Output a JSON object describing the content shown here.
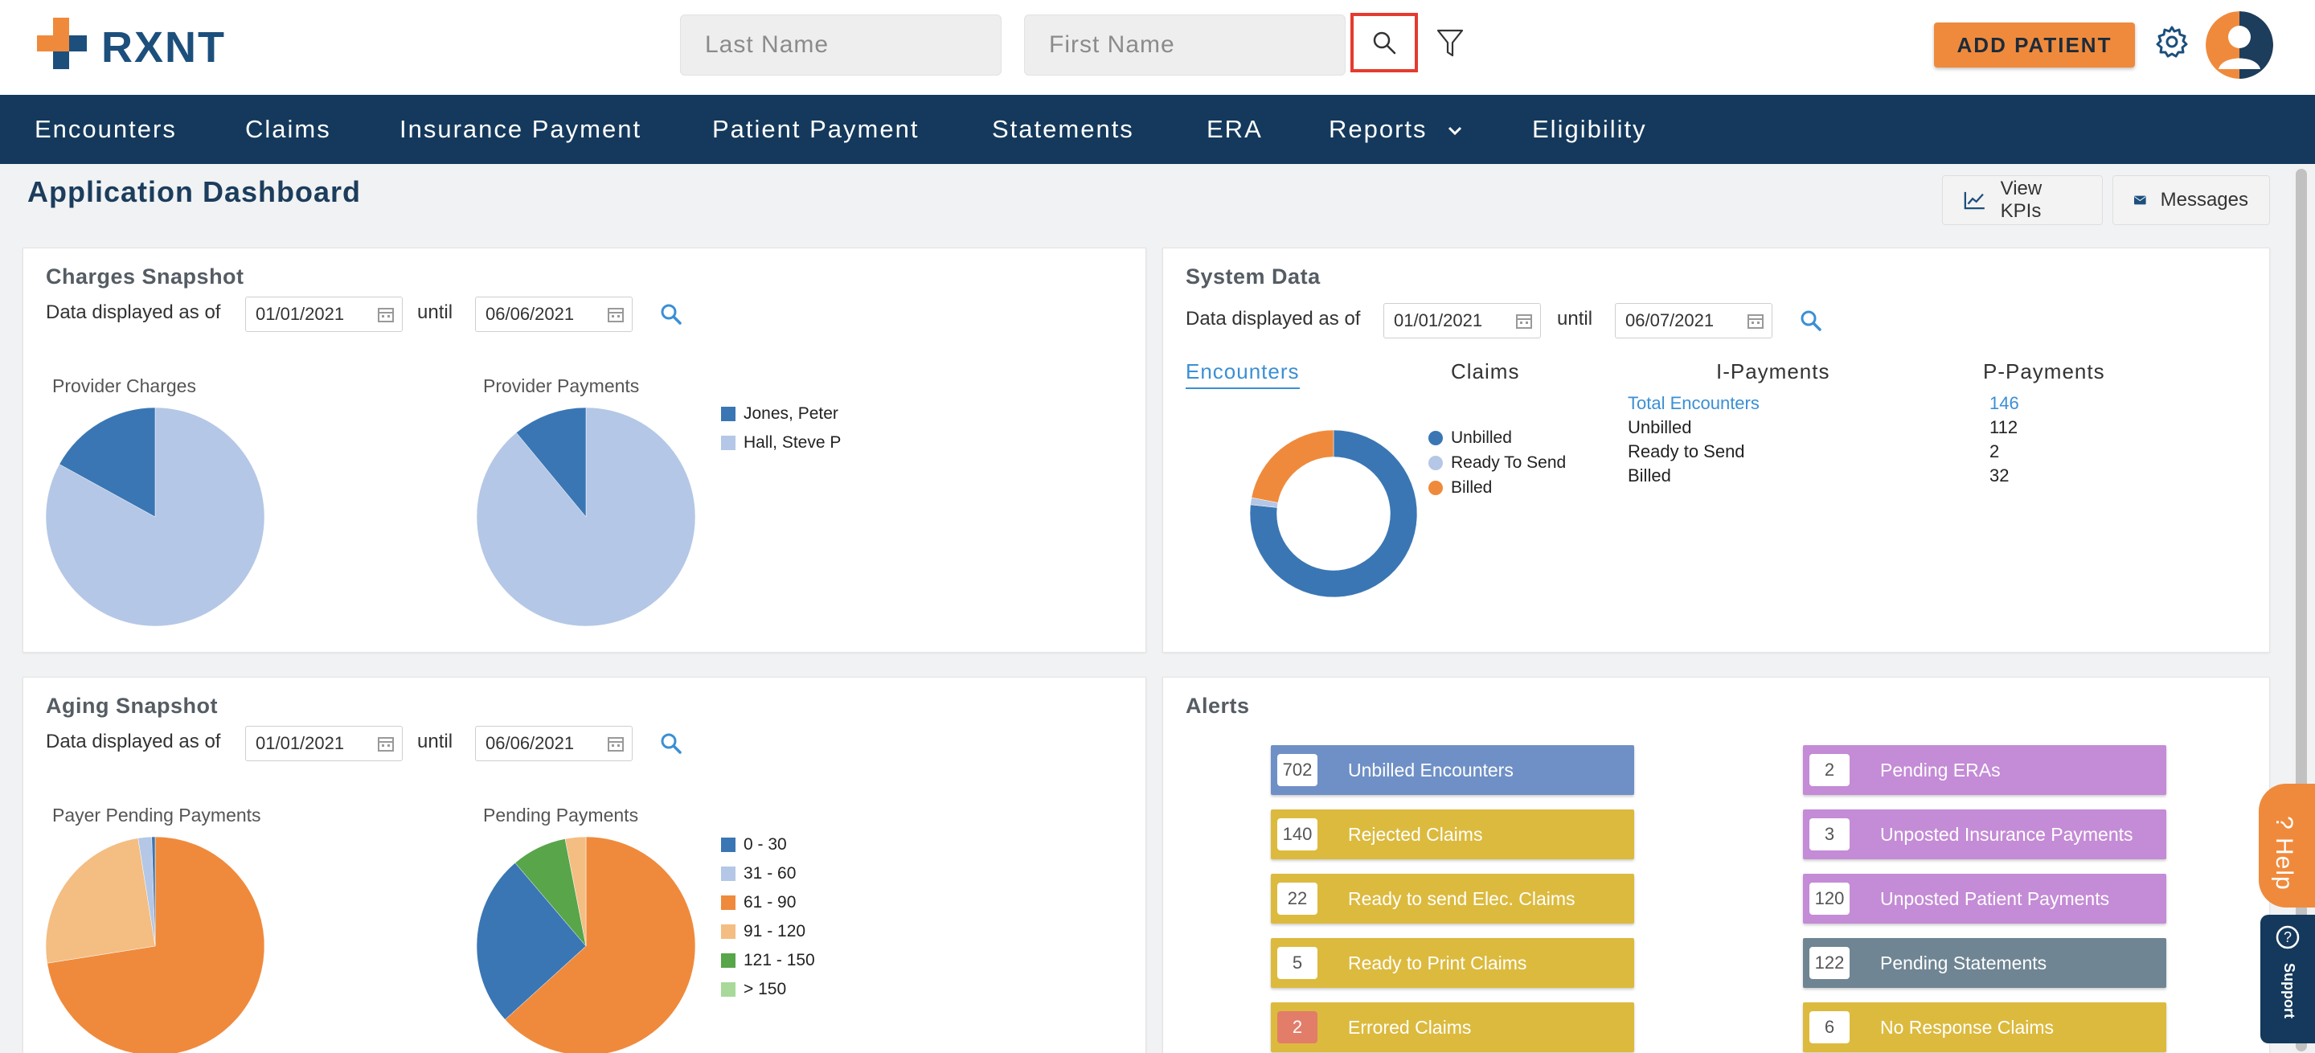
{
  "header": {
    "logo_text": "RXNT",
    "last_name_placeholder": "Last Name",
    "first_name_placeholder": "First Name",
    "add_patient_label": "ADD PATIENT",
    "search_icon": "search-icon",
    "filter_icon": "filter-icon",
    "settings_icon": "gear-icon"
  },
  "nav": {
    "items": [
      "Encounters",
      "Claims",
      "Insurance Payment",
      "Patient Payment",
      "Statements",
      "ERA",
      "Reports",
      "Eligibility"
    ]
  },
  "page": {
    "title": "Application Dashboard",
    "view_kpis_label": "View KPIs",
    "messages_label": "Messages"
  },
  "charges": {
    "title": "Charges Snapshot",
    "data_label": "Data displayed as of",
    "from_date": "01/01/2021",
    "until_label": "until",
    "to_date": "06/06/2021",
    "chart1_label": "Provider Charges",
    "chart2_label": "Provider Payments",
    "legend": [
      "Jones, Peter",
      "Hall, Steve P"
    ]
  },
  "system": {
    "title": "System Data",
    "data_label": "Data displayed as of",
    "from_date": "01/01/2021",
    "until_label": "until",
    "to_date": "06/07/2021",
    "tabs": [
      "Encounters",
      "Claims",
      "I-Payments",
      "P-Payments"
    ],
    "legend": [
      "Unbilled",
      "Ready To Send",
      "Billed"
    ],
    "stats": [
      {
        "label": "Total Encounters",
        "value": "146"
      },
      {
        "label": "Unbilled",
        "value": "112"
      },
      {
        "label": "Ready to Send",
        "value": "2"
      },
      {
        "label": "Billed",
        "value": "32"
      }
    ]
  },
  "aging": {
    "title": "Aging Snapshot",
    "data_label": "Data displayed as of",
    "from_date": "01/01/2021",
    "until_label": "until",
    "to_date": "06/06/2021",
    "chart1_label": "Payer Pending Payments",
    "chart2_label": "Pending Payments",
    "legend": [
      "0 - 30",
      "31 - 60",
      "61 - 90",
      "91 - 120",
      "121 - 150",
      "> 150"
    ]
  },
  "alerts": {
    "title": "Alerts",
    "left": [
      {
        "count": "702",
        "label": "Unbilled Encounters",
        "color": "#6f90c6"
      },
      {
        "count": "140",
        "label": "Rejected Claims",
        "color": "#dcba3e"
      },
      {
        "count": "22",
        "label": "Ready to send Elec. Claims",
        "color": "#dcba3e"
      },
      {
        "count": "5",
        "label": "Ready to Print Claims",
        "color": "#dcba3e"
      },
      {
        "count": "2",
        "label": "Errored Claims",
        "color": "#dcba3e"
      }
    ],
    "right": [
      {
        "count": "2",
        "label": "Pending ERAs",
        "color": "#c48bd6"
      },
      {
        "count": "3",
        "label": "Unposted Insurance Payments",
        "color": "#c48bd6"
      },
      {
        "count": "120",
        "label": "Unposted Patient Payments",
        "color": "#c48bd6"
      },
      {
        "count": "122",
        "label": "Pending Statements",
        "color": "#6f8593"
      },
      {
        "count": "6",
        "label": "No Response Claims",
        "color": "#dcba3e"
      }
    ]
  },
  "widgets": {
    "help_label": "? Help",
    "support_label": "Support"
  },
  "chart_data": [
    {
      "type": "pie",
      "title": "Provider Charges",
      "categories": [
        "Jones, Peter",
        "Hall, Steve P"
      ],
      "values": [
        17,
        83
      ],
      "colors": [
        "#3a76b4",
        "#b4c7e6"
      ]
    },
    {
      "type": "pie",
      "title": "Provider Payments",
      "categories": [
        "Jones, Peter",
        "Hall, Steve P"
      ],
      "values": [
        11,
        89
      ],
      "colors": [
        "#3a76b4",
        "#b4c7e6"
      ]
    },
    {
      "type": "pie",
      "title": "Encounters",
      "categories": [
        "Unbilled",
        "Ready To Send",
        "Billed"
      ],
      "values": [
        112,
        2,
        32
      ],
      "colors": [
        "#3a76b4",
        "#b4c7e6",
        "#ef8a3c"
      ],
      "donut": true
    },
    {
      "type": "pie",
      "title": "Payer Pending Payments",
      "categories": [
        "0 - 30",
        "31 - 60",
        "61 - 90",
        "91 - 120",
        "121 - 150",
        "> 150"
      ],
      "values": [
        0.5,
        2,
        72.5,
        25,
        0,
        0
      ],
      "colors": [
        "#3a76b4",
        "#b4c7e6",
        "#ef8a3c",
        "#f4bd82",
        "#58a54a",
        "#a8d99a"
      ]
    },
    {
      "type": "pie",
      "title": "Pending Payments",
      "categories": [
        "0 - 30",
        "31 - 60",
        "61 - 90",
        "91 - 120",
        "121 - 150",
        "> 150"
      ],
      "values": [
        25,
        0,
        62,
        3,
        8,
        0
      ],
      "colors": [
        "#3a76b4",
        "#b4c7e6",
        "#ef8a3c",
        "#f4bd82",
        "#58a54a",
        "#a8d99a"
      ],
      "order": [
        2,
        0,
        4,
        3,
        1
      ]
    }
  ]
}
